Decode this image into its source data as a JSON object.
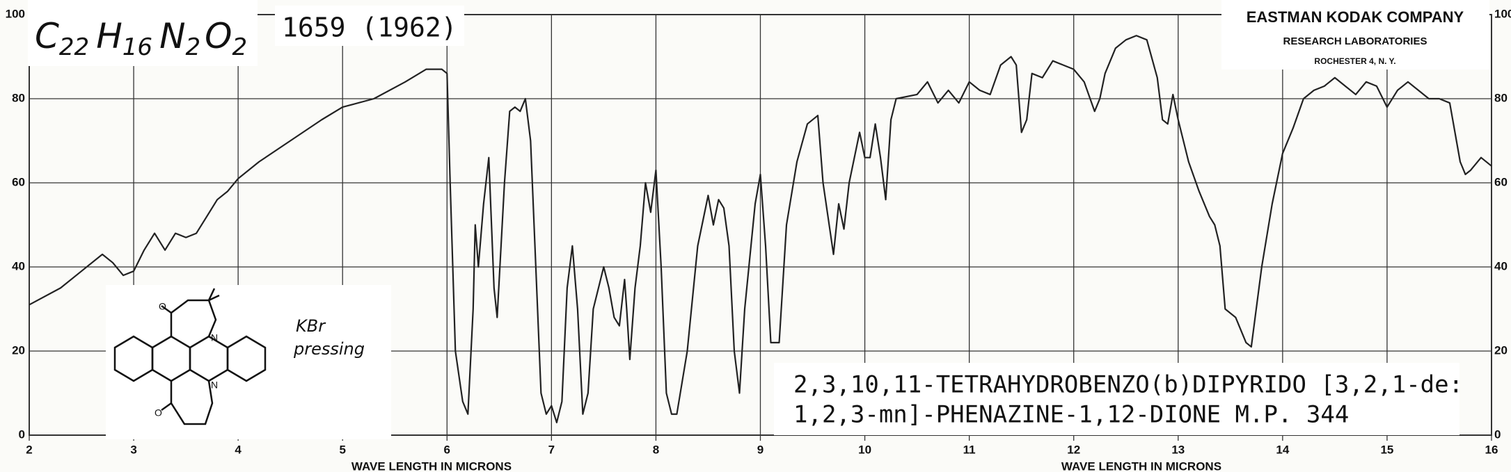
{
  "chart_data": {
    "type": "line",
    "formula": [
      "C",
      "22",
      "H",
      "16",
      "N",
      "2",
      "O",
      "2"
    ],
    "reference": "1659 (1962)",
    "lab": [
      "EASTMAN KODAK COMPANY",
      "RESEARCH LABORATORIES",
      "ROCHESTER 4, N. Y."
    ],
    "sample_note": [
      "KBr",
      "pressing"
    ],
    "title_lines": [
      "2,3,10,11-TETRAHYDROBENZO(b)DIPYRIDO [3,2,1-de:",
      "1,2,3-mn]-PHENAZINE-1,12-DIONE   M.P. 344"
    ],
    "xlabel": "WAVE LENGTH IN MICRONS",
    "xlim": [
      2,
      16
    ],
    "xticks": [
      2,
      3,
      4,
      5,
      6,
      7,
      8,
      9,
      10,
      11,
      12,
      13,
      14,
      15,
      16
    ],
    "ylim": [
      0,
      100
    ],
    "yticks": [
      0,
      20,
      40,
      60,
      80,
      100
    ],
    "grid": true,
    "color": "#222222",
    "x": [
      2.0,
      2.3,
      2.5,
      2.7,
      2.8,
      2.9,
      3.0,
      3.1,
      3.2,
      3.25,
      3.3,
      3.4,
      3.5,
      3.6,
      3.7,
      3.8,
      3.9,
      4.0,
      4.2,
      4.5,
      4.8,
      5.0,
      5.3,
      5.6,
      5.8,
      5.95,
      6.0,
      6.03,
      6.08,
      6.15,
      6.2,
      6.25,
      6.27,
      6.3,
      6.35,
      6.4,
      6.45,
      6.48,
      6.55,
      6.6,
      6.65,
      6.7,
      6.75,
      6.8,
      6.85,
      6.9,
      6.95,
      7.0,
      7.05,
      7.1,
      7.15,
      7.2,
      7.25,
      7.3,
      7.35,
      7.4,
      7.5,
      7.55,
      7.6,
      7.65,
      7.7,
      7.72,
      7.75,
      7.8,
      7.85,
      7.9,
      7.95,
      8.0,
      8.05,
      8.1,
      8.15,
      8.2,
      8.3,
      8.4,
      8.5,
      8.55,
      8.6,
      8.65,
      8.7,
      8.75,
      8.8,
      8.85,
      8.95,
      9.0,
      9.05,
      9.1,
      9.18,
      9.25,
      9.35,
      9.45,
      9.55,
      9.6,
      9.7,
      9.75,
      9.8,
      9.85,
      9.95,
      10.0,
      10.05,
      10.1,
      10.15,
      10.2,
      10.25,
      10.3,
      10.5,
      10.6,
      10.7,
      10.8,
      10.9,
      11.0,
      11.1,
      11.2,
      11.3,
      11.4,
      11.45,
      11.5,
      11.55,
      11.6,
      11.7,
      11.8,
      11.9,
      12.0,
      12.1,
      12.2,
      12.25,
      12.3,
      12.4,
      12.5,
      12.6,
      12.7,
      12.8,
      12.85,
      12.9,
      12.95,
      13.0,
      13.1,
      13.2,
      13.3,
      13.35,
      13.4,
      13.45,
      13.55,
      13.65,
      13.7,
      13.8,
      13.9,
      14.0,
      14.1,
      14.2,
      14.3,
      14.4,
      14.5,
      14.6,
      14.7,
      14.8,
      14.9,
      15.0,
      15.1,
      15.2,
      15.3,
      15.4,
      15.5,
      15.6,
      15.7,
      15.75,
      15.8,
      15.9,
      16.0
    ],
    "values": [
      31,
      35,
      39,
      43,
      41,
      38,
      39,
      44,
      48,
      46,
      44,
      48,
      47,
      48,
      52,
      56,
      58,
      61,
      65,
      70,
      75,
      78,
      80,
      84,
      87,
      87,
      86,
      60,
      20,
      8,
      5,
      30,
      50,
      40,
      55,
      66,
      35,
      28,
      60,
      77,
      78,
      77,
      80,
      70,
      40,
      10,
      5,
      7,
      3,
      8,
      35,
      45,
      30,
      5,
      10,
      30,
      40,
      35,
      28,
      26,
      37,
      30,
      18,
      35,
      45,
      60,
      53,
      63,
      40,
      10,
      5,
      5,
      20,
      45,
      57,
      50,
      56,
      54,
      45,
      20,
      10,
      30,
      55,
      62,
      45,
      22,
      22,
      50,
      65,
      74,
      76,
      60,
      43,
      55,
      49,
      60,
      72,
      66,
      66,
      74,
      66,
      56,
      75,
      80,
      81,
      84,
      79,
      82,
      79,
      84,
      82,
      81,
      88,
      90,
      88,
      72,
      75,
      86,
      85,
      89,
      88,
      87,
      84,
      77,
      80,
      86,
      92,
      94,
      95,
      94,
      85,
      75,
      74,
      81,
      75,
      65,
      58,
      52,
      50,
      45,
      30,
      28,
      22,
      21,
      40,
      55,
      67,
      73,
      80,
      82,
      83,
      85,
      83,
      81,
      84,
      83,
      78,
      82,
      84,
      82,
      80,
      80,
      79,
      65,
      62,
      63,
      66,
      64
    ]
  }
}
